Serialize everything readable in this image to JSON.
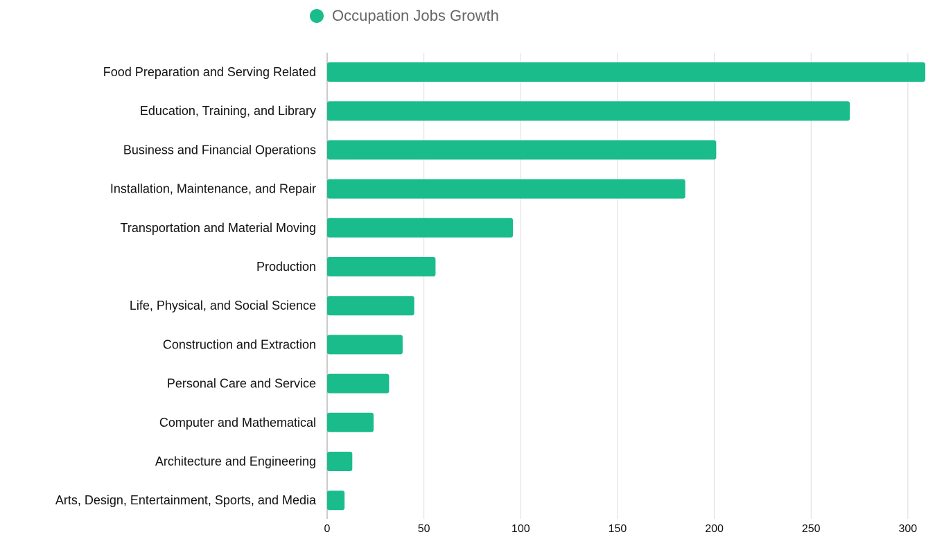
{
  "legend": {
    "label": "Occupation Jobs Growth",
    "color": "#1abc8c"
  },
  "chart_data": {
    "type": "bar",
    "orientation": "horizontal",
    "categories": [
      "Food Preparation and Serving Related",
      "Education, Training, and Library",
      "Business and Financial Operations",
      "Installation, Maintenance, and Repair",
      "Transportation and Material Moving",
      "Production",
      "Life, Physical, and Social Science",
      "Construction and Extraction",
      "Personal Care and Service",
      "Computer and Mathematical",
      "Architecture and Engineering",
      "Arts, Design, Entertainment, Sports, and Media"
    ],
    "series": [
      {
        "name": "Occupation Jobs Growth",
        "color": "#1abc8c",
        "values": [
          309,
          270,
          201,
          185,
          96,
          56,
          45,
          39,
          32,
          24,
          13,
          9
        ]
      }
    ],
    "x_ticks": [
      0,
      50,
      100,
      150,
      200,
      250,
      300
    ],
    "xlim": [
      0,
      309
    ],
    "grid": true,
    "legend_position": "top-center"
  }
}
